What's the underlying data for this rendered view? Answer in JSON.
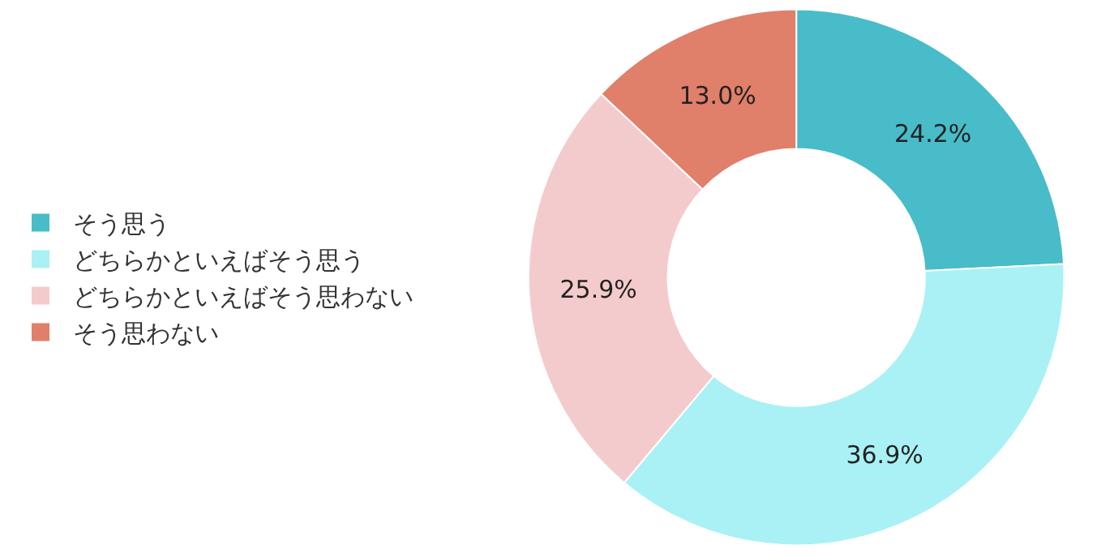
{
  "chart_data": {
    "type": "donut",
    "categories": [
      "そう思う",
      "どちらかといえばそう思う",
      "どちらかといえばそう思わない",
      "そう思わない"
    ],
    "values": [
      24.2,
      36.9,
      25.9,
      13.0
    ],
    "colors": [
      "#48bcc8",
      "#a9f1f5",
      "#f4cbcc",
      "#e07f6a"
    ],
    "value_labels": [
      "24.2%",
      "36.9%",
      "25.9%",
      "13.0%"
    ],
    "legend": "left"
  }
}
